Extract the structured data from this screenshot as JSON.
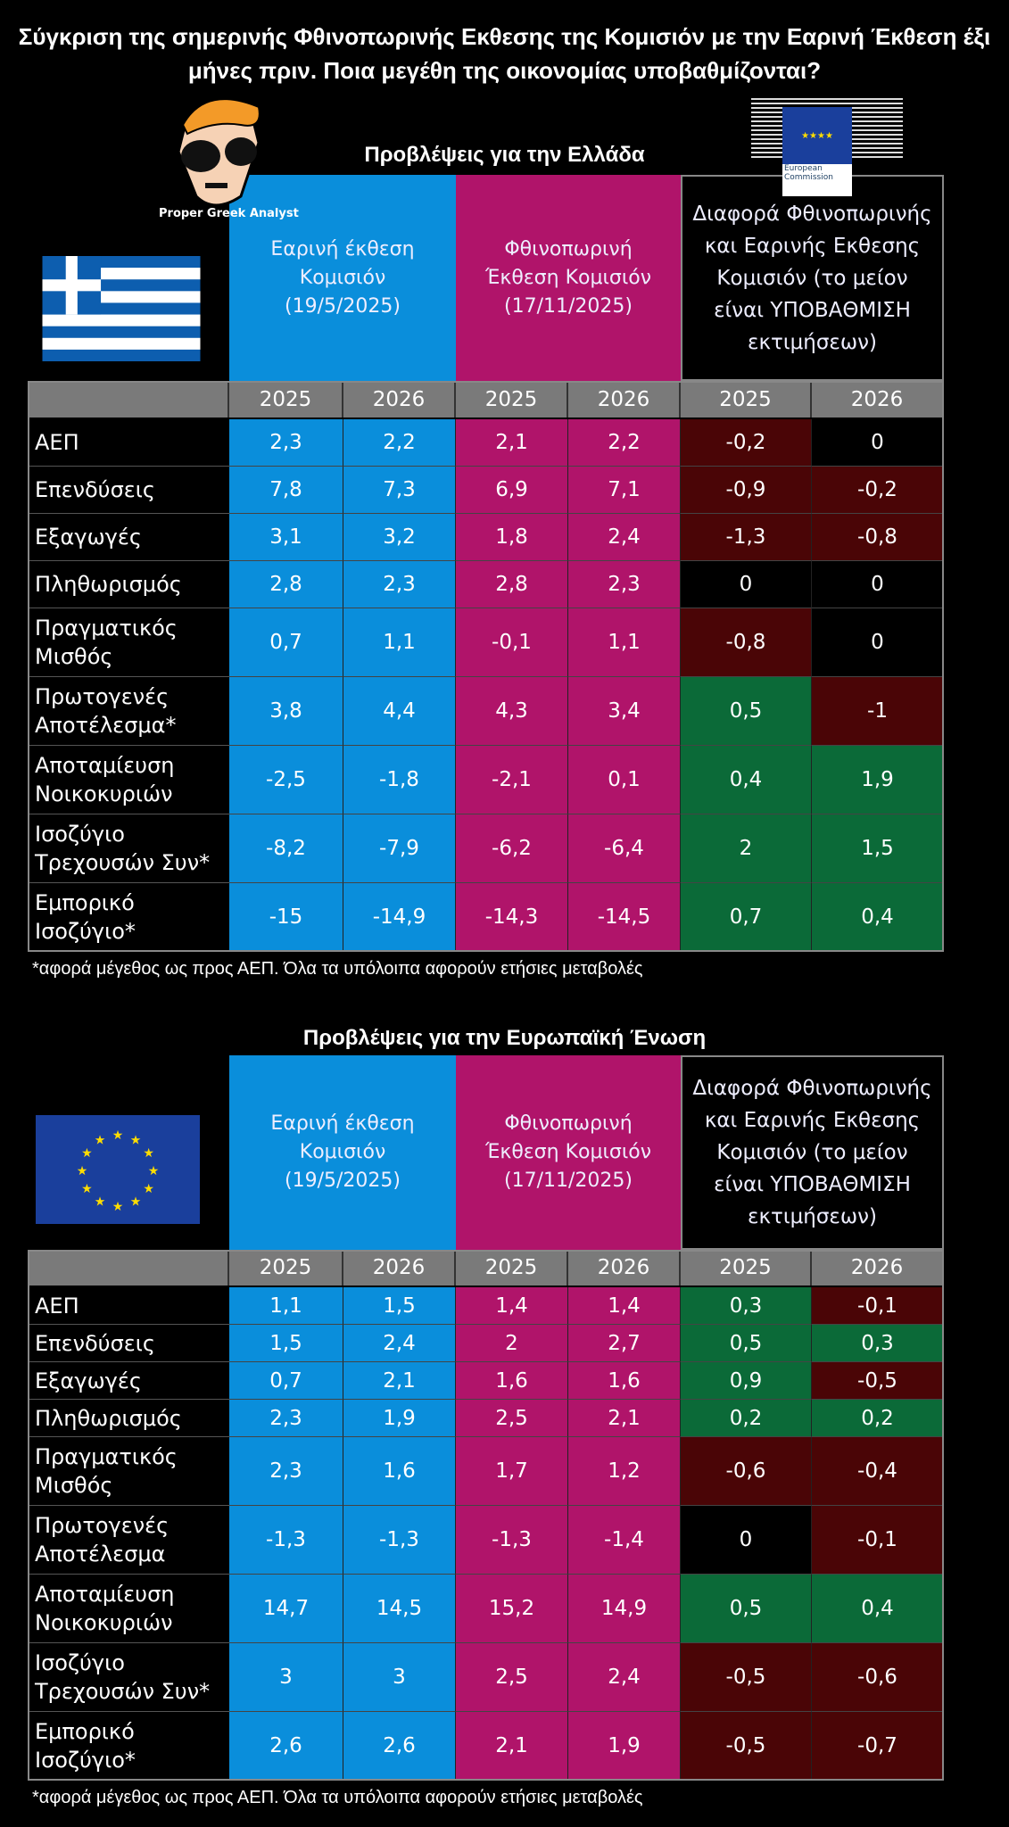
{
  "title": "Σύγκριση της σημερινής Φθινοπωρινής Εκθεσης της Κομισιόν με την Εαρινή Έκθεση έξι μήνες πριν. Ποια μεγέθη της οικονομίας υποβαθμίζονται?",
  "logo_text": "Proper Greek Analyst",
  "ec_logo": [
    "European",
    "Commission"
  ],
  "colors": {
    "spring": "#0a8edb",
    "autumn": "#b0146a",
    "neg": "#4a0506",
    "pos": "#0b6a38",
    "zero": "#000000",
    "year_bar": "#7a7a7a"
  },
  "headers": {
    "spring": "Εαρινή έκθεση Κομισιόν (19/5/2025)",
    "autumn": "Φθινοπωρινή Έκθεση Κομισιόν (17/11/2025)",
    "diff": "Διαφορά Φθινοπωρινής και Εαρινής Εκθεσης Κομισιόν (το μείον είναι ΥΠΟΒΑΘΜΙΣΗ εκτιμήσεων)"
  },
  "years": [
    "2025",
    "2026",
    "2025",
    "2026",
    "2025",
    "2026"
  ],
  "footnote": "*αφορά μέγεθος ως προς ΑΕΠ. Όλα τα υπόλοιπα αφορούν ετήσιες μεταβολές",
  "tables": [
    {
      "section_title": "Προβλέψεις για την Ελλάδα",
      "flag": "greece-flag",
      "rows": [
        {
          "label": [
            "ΑΕΠ"
          ],
          "values": [
            "2,3",
            "2,2",
            "2,1",
            "2,2",
            "-0,2",
            "0"
          ]
        },
        {
          "label": [
            "Επενδύσεις"
          ],
          "values": [
            "7,8",
            "7,3",
            "6,9",
            "7,1",
            "-0,9",
            "-0,2"
          ]
        },
        {
          "label": [
            "Εξαγωγές"
          ],
          "values": [
            "3,1",
            "3,2",
            "1,8",
            "2,4",
            "-1,3",
            "-0,8"
          ]
        },
        {
          "label": [
            "Πληθωρισμός"
          ],
          "values": [
            "2,8",
            "2,3",
            "2,8",
            "2,3",
            "0",
            "0"
          ]
        },
        {
          "label": [
            "Πραγματικός",
            "Μισθός"
          ],
          "values": [
            "0,7",
            "1,1",
            "-0,1",
            "1,1",
            "-0,8",
            "0"
          ]
        },
        {
          "label": [
            "Πρωτογενές",
            "Αποτέλεσμα*"
          ],
          "values": [
            "3,8",
            "4,4",
            "4,3",
            "3,4",
            "0,5",
            "-1"
          ]
        },
        {
          "label": [
            "Αποταμίευση",
            "Νοικοκυριών"
          ],
          "values": [
            "-2,5",
            "-1,8",
            "-2,1",
            "0,1",
            "0,4",
            "1,9"
          ]
        },
        {
          "label": [
            "Ισοζύγιο",
            "Τρεχουσών Συν*"
          ],
          "values": [
            "-8,2",
            "-7,9",
            "-6,2",
            "-6,4",
            "2",
            "1,5"
          ]
        },
        {
          "label": [
            "Εμπορικό",
            "Ισοζύγιο*"
          ],
          "values": [
            "-15",
            "-14,9",
            "-14,3",
            "-14,5",
            "0,7",
            "0,4"
          ]
        }
      ]
    },
    {
      "section_title": "Προβλέψεις για την Ευρωπαϊκή Ένωση",
      "flag": "eu-flag",
      "rows": [
        {
          "label": [
            "ΑΕΠ"
          ],
          "values": [
            "1,1",
            "1,5",
            "1,4",
            "1,4",
            "0,3",
            "-0,1"
          ]
        },
        {
          "label": [
            "Επενδύσεις"
          ],
          "values": [
            "1,5",
            "2,4",
            "2",
            "2,7",
            "0,5",
            "0,3"
          ]
        },
        {
          "label": [
            "Εξαγωγές"
          ],
          "values": [
            "0,7",
            "2,1",
            "1,6",
            "1,6",
            "0,9",
            "-0,5"
          ]
        },
        {
          "label": [
            "Πληθωρισμός"
          ],
          "values": [
            "2,3",
            "1,9",
            "2,5",
            "2,1",
            "0,2",
            "0,2"
          ]
        },
        {
          "label": [
            "Πραγματικός",
            "Μισθός"
          ],
          "values": [
            "2,3",
            "1,6",
            "1,7",
            "1,2",
            "-0,6",
            "-0,4"
          ]
        },
        {
          "label": [
            "Πρωτογενές",
            "Αποτέλεσμα"
          ],
          "values": [
            "-1,3",
            "-1,3",
            "-1,3",
            "-1,4",
            "0",
            "-0,1"
          ]
        },
        {
          "label": [
            "Αποταμίευση",
            "Νοικοκυριών"
          ],
          "values": [
            "14,7",
            "14,5",
            "15,2",
            "14,9",
            "0,5",
            "0,4"
          ]
        },
        {
          "label": [
            "Ισοζύγιο",
            "Τρεχουσών Συν*"
          ],
          "values": [
            "3",
            "3",
            "2,5",
            "2,4",
            "-0,5",
            "-0,6"
          ]
        },
        {
          "label": [
            "Εμπορικό",
            "Ισοζύγιο*"
          ],
          "values": [
            "2,6",
            "2,6",
            "2,1",
            "1,9",
            "-0,5",
            "-0,7"
          ]
        }
      ]
    }
  ]
}
